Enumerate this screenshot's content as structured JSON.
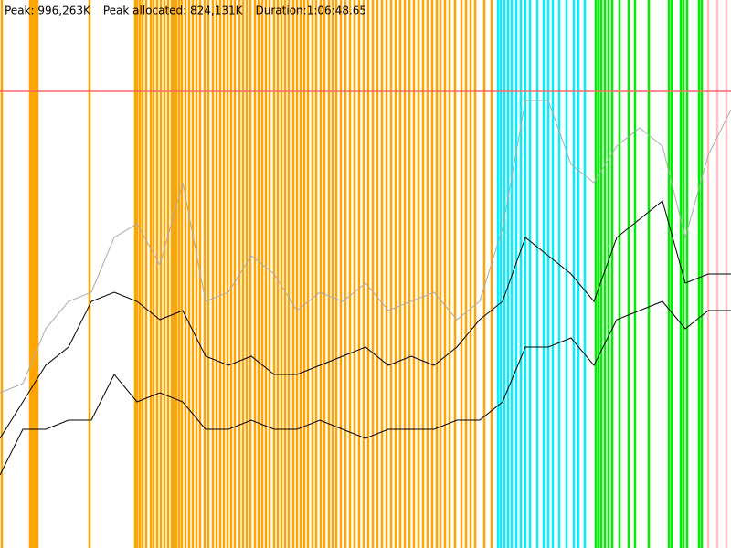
{
  "header": {
    "peak": "Peak: 996,263K",
    "peak_allocated": "Peak allocated: 824,131K",
    "duration": "Duration:1:06:48.65"
  },
  "chart_data": {
    "type": "line",
    "xlim": [
      0,
      4000
    ],
    "ylim": [
      0,
      1195516
    ],
    "peak_value": 996263,
    "peak_color": "#ff6666",
    "x": [
      0,
      125,
      250,
      375,
      500,
      625,
      750,
      875,
      1000,
      1125,
      1250,
      1375,
      1500,
      1625,
      1750,
      1875,
      2000,
      2125,
      2250,
      2375,
      2500,
      2625,
      2750,
      2875,
      3000,
      3125,
      3250,
      3375,
      3500,
      3625,
      3750,
      3875,
      4000
    ],
    "series": [
      {
        "color": "#aaaaaa",
        "values": [
          338725,
          358650,
          478200,
          537975,
          557900,
          677450,
          707338,
          617675,
          797000,
          537975,
          557900,
          637600,
          597750,
          518050,
          557900,
          537975,
          577825,
          518050,
          537975,
          557900,
          498125,
          537975,
          697375,
          976325,
          976325,
          836850,
          797000,
          876700,
          916550,
          876700,
          677450,
          856775,
          956400
        ]
      },
      {
        "color": "#000000",
        "values": [
          239100,
          318800,
          398500,
          438350,
          537975,
          557900,
          537975,
          498125,
          518050,
          418425,
          398500,
          418425,
          378575,
          378575,
          398500,
          418425,
          438350,
          398500,
          418425,
          398500,
          438350,
          498125,
          537975,
          677450,
          637600,
          597750,
          537975,
          677450,
          717300,
          757150,
          577825,
          597750,
          597750
        ]
      },
      {
        "color": "#000000",
        "values": [
          159400,
          259025,
          259025,
          278950,
          278950,
          378575,
          318800,
          338725,
          318800,
          259025,
          259025,
          278950,
          259025,
          259025,
          278950,
          259025,
          239100,
          259025,
          259025,
          259025,
          278950,
          278950,
          318800,
          438350,
          438350,
          458275,
          398500,
          498125,
          518050,
          537975,
          478200,
          518050,
          518050
        ]
      }
    ],
    "markers": [
      {
        "color": "#ffa500",
        "x": [
          10,
          165,
          175,
          185,
          195,
          205,
          490,
          740,
          750,
          765,
          780,
          800,
          825,
          840,
          860,
          880,
          900,
          920,
          940,
          950,
          965,
          980,
          995,
          1015,
          1035,
          1055,
          1075,
          1095,
          1120,
          1140,
          1165,
          1185,
          1205,
          1225,
          1245,
          1265,
          1285,
          1310,
          1330,
          1350,
          1370,
          1395,
          1415,
          1435,
          1455,
          1475,
          1500,
          1520,
          1540,
          1560,
          1580,
          1605,
          1625,
          1645,
          1665,
          1685,
          1710,
          1730,
          1755,
          1775,
          1800,
          1820,
          1840,
          1865,
          1890,
          1915,
          1940,
          1965,
          1990,
          2015,
          2040,
          2065,
          2090,
          2115,
          2140,
          2165,
          2190,
          2215,
          2240,
          2265,
          2290,
          2315,
          2340,
          2365,
          2390,
          2410,
          2435,
          2460,
          2490,
          2525,
          2550,
          2575,
          2600,
          2650,
          2690
        ]
      },
      {
        "color": "#00f0ff",
        "x": [
          2725,
          2740,
          2760,
          2780,
          2800,
          2825,
          2850,
          2875,
          2900,
          2940,
          2975,
          3000,
          3025,
          3060,
          3100,
          3140,
          3165,
          3200
        ]
      },
      {
        "color": "#00ee00",
        "x": [
          3260,
          3275,
          3290,
          3310,
          3330,
          3350,
          3390,
          3440,
          3475,
          3550,
          3660,
          3675,
          3725,
          3740,
          3760,
          3825,
          3840
        ]
      },
      {
        "color": "#ffc0cb",
        "x": [
          3875,
          3925,
          3975
        ]
      }
    ]
  }
}
